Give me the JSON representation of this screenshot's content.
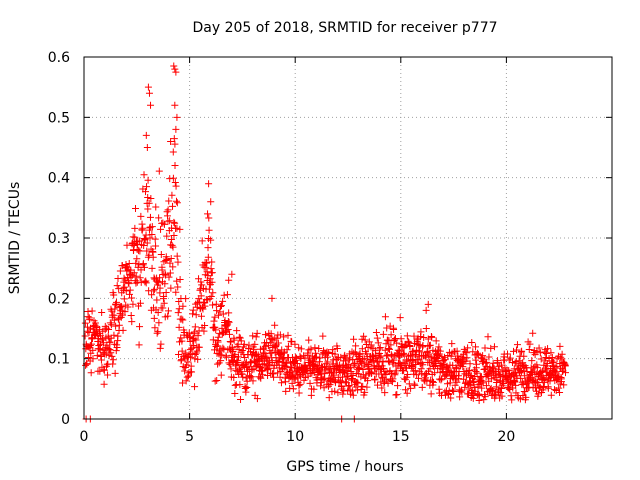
{
  "chart_data": {
    "type": "scatter",
    "title": "Day 205 of 2018, SRMTID for receiver p777",
    "xlabel": "GPS time / hours",
    "ylabel": "SRMTID / TECUs",
    "xlim": [
      0,
      25
    ],
    "ylim": [
      0,
      0.6
    ],
    "xticks": [
      0,
      5,
      10,
      15,
      20
    ],
    "yticks": [
      0,
      0.1,
      0.2,
      0.3,
      0.4,
      0.5,
      0.6
    ],
    "xtick_labels": [
      "0",
      "5",
      "10",
      "15",
      "20"
    ],
    "ytick_labels": [
      "0",
      "0.1",
      "0.2",
      "0.3",
      "0.4",
      "0.5",
      "0.6"
    ],
    "grid": true,
    "marker": "+",
    "color": "#ff0000",
    "series": [
      {
        "name": "p777",
        "trend": [
          {
            "x": 0.1,
            "y": 0.13
          },
          {
            "x": 0.5,
            "y": 0.13
          },
          {
            "x": 1.0,
            "y": 0.11
          },
          {
            "x": 1.5,
            "y": 0.16
          },
          {
            "x": 2.0,
            "y": 0.21
          },
          {
            "x": 2.5,
            "y": 0.26
          },
          {
            "x": 3.0,
            "y": 0.33
          },
          {
            "x": 3.3,
            "y": 0.24
          },
          {
            "x": 3.7,
            "y": 0.22
          },
          {
            "x": 4.0,
            "y": 0.28
          },
          {
            "x": 4.3,
            "y": 0.34
          },
          {
            "x": 4.6,
            "y": 0.14
          },
          {
            "x": 5.0,
            "y": 0.1
          },
          {
            "x": 5.5,
            "y": 0.18
          },
          {
            "x": 5.9,
            "y": 0.26
          },
          {
            "x": 6.2,
            "y": 0.12
          },
          {
            "x": 6.7,
            "y": 0.16
          },
          {
            "x": 7.0,
            "y": 0.1
          },
          {
            "x": 8.0,
            "y": 0.09
          },
          {
            "x": 9.0,
            "y": 0.11
          },
          {
            "x": 10.0,
            "y": 0.08
          },
          {
            "x": 11.0,
            "y": 0.08
          },
          {
            "x": 12.0,
            "y": 0.08
          },
          {
            "x": 13.0,
            "y": 0.08
          },
          {
            "x": 14.0,
            "y": 0.1
          },
          {
            "x": 15.0,
            "y": 0.1
          },
          {
            "x": 16.0,
            "y": 0.1
          },
          {
            "x": 17.0,
            "y": 0.08
          },
          {
            "x": 18.0,
            "y": 0.08
          },
          {
            "x": 19.0,
            "y": 0.07
          },
          {
            "x": 20.0,
            "y": 0.07
          },
          {
            "x": 21.0,
            "y": 0.08
          },
          {
            "x": 22.0,
            "y": 0.08
          },
          {
            "x": 22.8,
            "y": 0.08
          }
        ],
        "spread": [
          {
            "x": 0.0,
            "s": 0.05
          },
          {
            "x": 2.0,
            "s": 0.07
          },
          {
            "x": 3.0,
            "s": 0.12
          },
          {
            "x": 4.3,
            "s": 0.14
          },
          {
            "x": 5.0,
            "s": 0.06
          },
          {
            "x": 6.0,
            "s": 0.08
          },
          {
            "x": 7.0,
            "s": 0.05
          },
          {
            "x": 10.0,
            "s": 0.04
          },
          {
            "x": 16.0,
            "s": 0.05
          },
          {
            "x": 22.8,
            "s": 0.04
          }
        ],
        "notable_points": [
          {
            "x": 3.05,
            "y": 0.55
          },
          {
            "x": 3.1,
            "y": 0.54
          },
          {
            "x": 3.15,
            "y": 0.52
          },
          {
            "x": 4.25,
            "y": 0.585
          },
          {
            "x": 4.3,
            "y": 0.58
          },
          {
            "x": 4.35,
            "y": 0.575
          },
          {
            "x": 4.3,
            "y": 0.52
          },
          {
            "x": 4.4,
            "y": 0.5
          },
          {
            "x": 4.35,
            "y": 0.48
          },
          {
            "x": 2.95,
            "y": 0.47
          },
          {
            "x": 3.0,
            "y": 0.45
          },
          {
            "x": 4.1,
            "y": 0.46
          },
          {
            "x": 5.9,
            "y": 0.39
          },
          {
            "x": 6.0,
            "y": 0.36
          },
          {
            "x": 5.85,
            "y": 0.34
          },
          {
            "x": 8.9,
            "y": 0.2
          },
          {
            "x": 16.3,
            "y": 0.19
          },
          {
            "x": 16.2,
            "y": 0.18
          },
          {
            "x": 7.0,
            "y": 0.24
          },
          {
            "x": 6.85,
            "y": 0.23
          },
          {
            "x": 0.1,
            "y": 0.0
          },
          {
            "x": 0.3,
            "y": 0.0
          },
          {
            "x": 12.2,
            "y": 0.0
          },
          {
            "x": 12.8,
            "y": 0.0
          }
        ]
      }
    ]
  }
}
